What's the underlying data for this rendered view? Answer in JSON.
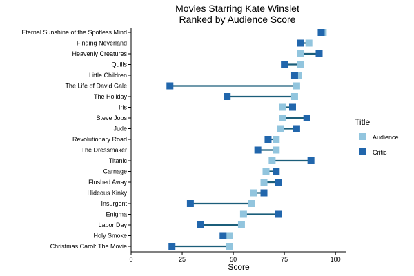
{
  "chart_data": {
    "type": "dumbbell",
    "title": "Movies Starring Kate Winslet",
    "subtitle": "Ranked by Audience Score",
    "xlabel": "Score",
    "ylabel": "",
    "xlim": [
      0,
      105
    ],
    "x_ticks": [
      0,
      25,
      50,
      75,
      100
    ],
    "grid": false,
    "legend": {
      "title": "Title",
      "placement": "right",
      "entries": [
        {
          "name": "Audience",
          "color": "#92c5de"
        },
        {
          "name": "Critic",
          "color": "#2166ac"
        }
      ]
    },
    "segment_color": "#1b5e7a",
    "categories": [
      "Eternal Sunshine of the Spotless Mind",
      "Finding Neverland",
      "Heavenly Creatures",
      "Quills",
      "Little Children",
      "The Life of David Gale",
      "The Holiday",
      "Iris",
      "Steve Jobs",
      "Jude",
      "Revolutionary Road",
      "The Dressmaker",
      "Titanic",
      "Carnage",
      "Flushed Away",
      "Hideous Kinky",
      "Insurgent",
      "Enigma",
      "Labor Day",
      "Holy Smoke",
      "Christmas Carol: The Movie"
    ],
    "series": [
      {
        "name": "Audience",
        "values": [
          94,
          87,
          83,
          83,
          82,
          81,
          80,
          74,
          74,
          73,
          71,
          71,
          69,
          66,
          65,
          60,
          59,
          55,
          54,
          48,
          48
        ]
      },
      {
        "name": "Critic",
        "values": [
          93,
          83,
          92,
          75,
          80,
          19,
          47,
          79,
          86,
          81,
          67,
          62,
          88,
          71,
          72,
          65,
          29,
          72,
          34,
          45,
          20
        ]
      }
    ]
  }
}
